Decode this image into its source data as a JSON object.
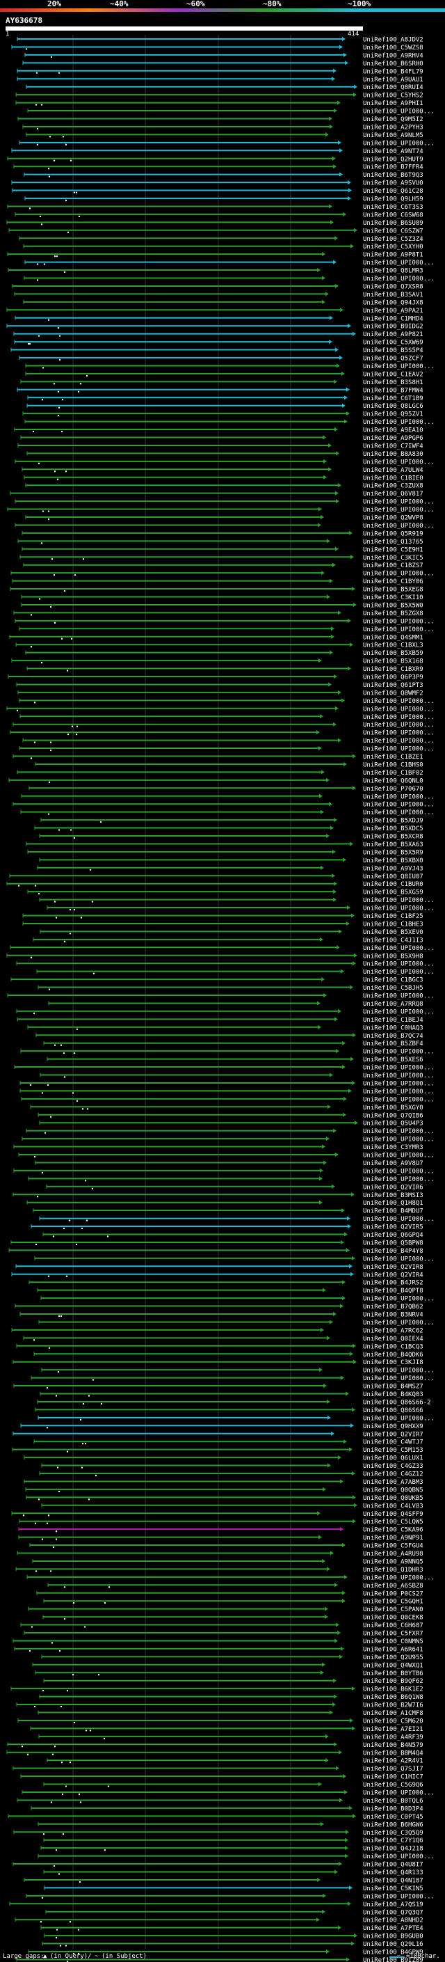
{
  "header": {
    "identity_scale": [
      {
        "label": "20%",
        "color": "#d62728"
      },
      {
        "label": "~40%",
        "color": "#ff7f0e"
      },
      {
        "label": "~60%",
        "color": "#9b30c8"
      },
      {
        "label": "~80%",
        "color": "#2ca02c"
      },
      {
        "label": "~100%",
        "color": "#1fbad6"
      }
    ],
    "query_id": "AY636678",
    "ruler_start": "1",
    "ruler_end": "414"
  },
  "hits": [
    {
      "name": "UniRef100_A8JDV2",
      "color": "cyan"
    },
    {
      "name": "UniRef100_C5WZS8",
      "color": "cyan"
    },
    {
      "name": "UniRef100_A9RHV4",
      "color": "cyan"
    },
    {
      "name": "UniRef100_B6SRH0",
      "color": "cyan"
    },
    {
      "name": "UniRef100_B4FL79",
      "color": "cyan"
    },
    {
      "name": "UniRef100_A9UAU1",
      "color": "cyan"
    },
    {
      "name": "UniRef100_Q8RUI4",
      "color": "cyan"
    },
    {
      "name": "UniRef100_C5YHS2",
      "color": "green"
    },
    {
      "name": "UniRef100_A9PHI1",
      "color": "green"
    },
    {
      "name": "UniRef100_UPI000...",
      "color": "green"
    },
    {
      "name": "UniRef100_Q9M5I2",
      "color": "green"
    },
    {
      "name": "UniRef100_A2PYH3",
      "color": "green"
    },
    {
      "name": "UniRef100_A9NLM5",
      "color": "green"
    },
    {
      "name": "UniRef100_UPI000...",
      "color": "cyan"
    },
    {
      "name": "UniRef100_A9NT74",
      "color": "cyan"
    },
    {
      "name": "UniRef100_Q2HUT9",
      "color": "green"
    },
    {
      "name": "UniRef100_B7FFR4",
      "color": "green"
    },
    {
      "name": "UniRef100_B6T9Q3",
      "color": "cyan"
    },
    {
      "name": "UniRef100_A9SVU0",
      "color": "cyan"
    },
    {
      "name": "UniRef100_Q61C28",
      "color": "cyan"
    },
    {
      "name": "UniRef100_Q9LH59",
      "color": "cyan"
    },
    {
      "name": "UniRef100_C6T3S3",
      "color": "green"
    },
    {
      "name": "UniRef100_C6SW68",
      "color": "green"
    },
    {
      "name": "UniRef100_B6SU89",
      "color": "green"
    },
    {
      "name": "UniRef100_C6SZW7",
      "color": "green"
    },
    {
      "name": "UniRef100_C5Z3Z4",
      "color": "green"
    },
    {
      "name": "UniRef100_C5XYH0",
      "color": "green"
    },
    {
      "name": "UniRef100_A9P8T1",
      "color": "green"
    },
    {
      "name": "UniRef100_UPI000...",
      "color": "cyan"
    },
    {
      "name": "UniRef100_Q8LMR3",
      "color": "green"
    },
    {
      "name": "UniRef100_UPI000...",
      "color": "green"
    },
    {
      "name": "UniRef100_Q7XSR8",
      "color": "green"
    },
    {
      "name": "UniRef100_B3SAV1",
      "color": "green"
    },
    {
      "name": "UniRef100_Q94JX8",
      "color": "green"
    },
    {
      "name": "UniRef100_A9PA21",
      "color": "green"
    },
    {
      "name": "UniRef100_C1MHD4",
      "color": "cyan"
    },
    {
      "name": "UniRef100_B9IDG2",
      "color": "cyan"
    },
    {
      "name": "UniRef100_A9P821",
      "color": "cyan"
    },
    {
      "name": "UniRef100_C5XW69",
      "color": "cyan"
    },
    {
      "name": "UniRef100_B5S5P4",
      "color": "cyan"
    },
    {
      "name": "UniRef100_Q5ZCF7",
      "color": "cyan"
    },
    {
      "name": "UniRef100_UPI000...",
      "color": "green"
    },
    {
      "name": "UniRef100_C1EAV2",
      "color": "green"
    },
    {
      "name": "UniRef100_B3S8H1",
      "color": "green"
    },
    {
      "name": "UniRef100_B7FMW4",
      "color": "cyan"
    },
    {
      "name": "UniRef100_C6T1B9",
      "color": "cyan"
    },
    {
      "name": "UniRef100_Q8LGC6",
      "color": "cyan"
    },
    {
      "name": "UniRef100_Q95ZV1",
      "color": "green"
    },
    {
      "name": "UniRef100_UPI000...",
      "color": "green"
    },
    {
      "name": "UniRef100_A9EA10",
      "color": "green"
    },
    {
      "name": "UniRef100_A9PGP6",
      "color": "green"
    },
    {
      "name": "UniRef100_C7IWF4",
      "color": "green"
    },
    {
      "name": "UniRef100_B8A830",
      "color": "green"
    },
    {
      "name": "UniRef100_UPI000...",
      "color": "green"
    },
    {
      "name": "UniRef100_A7ULW4",
      "color": "green"
    },
    {
      "name": "UniRef100_C1BIE0",
      "color": "green"
    },
    {
      "name": "UniRef100_C3ZUX8",
      "color": "green"
    },
    {
      "name": "UniRef100_Q6V817",
      "color": "green"
    },
    {
      "name": "UniRef100_UPI000...",
      "color": "green"
    },
    {
      "name": "UniRef100_UPI000...",
      "color": "green"
    },
    {
      "name": "UniRef100_Q2WVP8",
      "color": "green"
    },
    {
      "name": "UniRef100_UPI000...",
      "color": "green"
    },
    {
      "name": "UniRef100_Q5R919",
      "color": "green"
    },
    {
      "name": "UniRef100_Q13765",
      "color": "green"
    },
    {
      "name": "UniRef100_C5E9H1",
      "color": "green"
    },
    {
      "name": "UniRef100_C3KIC5",
      "color": "green"
    },
    {
      "name": "UniRef100_C1BZS7",
      "color": "green"
    },
    {
      "name": "UniRef100_UPI000...",
      "color": "green"
    },
    {
      "name": "UniRef100_C1BY06",
      "color": "green"
    },
    {
      "name": "UniRef100_B5XEG8",
      "color": "green"
    },
    {
      "name": "UniRef100_C3KI10",
      "color": "green"
    },
    {
      "name": "UniRef100_B5X5W0",
      "color": "green"
    },
    {
      "name": "UniRef100_B5ZGX8",
      "color": "green"
    },
    {
      "name": "UniRef100_UPI000...",
      "color": "green"
    },
    {
      "name": "UniRef100_UPI000...",
      "color": "green"
    },
    {
      "name": "UniRef100_Q4SMM1",
      "color": "green"
    },
    {
      "name": "UniRef100_C1BXL3",
      "color": "green"
    },
    {
      "name": "UniRef100_B5XB59",
      "color": "green"
    },
    {
      "name": "UniRef100_B5X168",
      "color": "green"
    },
    {
      "name": "UniRef100_C1BXR9",
      "color": "green"
    },
    {
      "name": "UniRef100_Q6P3P9",
      "color": "green"
    },
    {
      "name": "UniRef100_Q61PT3",
      "color": "green"
    },
    {
      "name": "UniRef100_Q8WMF2",
      "color": "green"
    },
    {
      "name": "UniRef100_UPI000...",
      "color": "green"
    },
    {
      "name": "UniRef100_UPI000...",
      "color": "green"
    },
    {
      "name": "UniRef100_UPI000...",
      "color": "green"
    },
    {
      "name": "UniRef100_UPI000...",
      "color": "green"
    },
    {
      "name": "UniRef100_UPI000...",
      "color": "green"
    },
    {
      "name": "UniRef100_UPI000...",
      "color": "green"
    },
    {
      "name": "UniRef100_UPI000...",
      "color": "green"
    },
    {
      "name": "UniRef100_C1BZE1",
      "color": "green"
    },
    {
      "name": "UniRef100_C1BHS0",
      "color": "green"
    },
    {
      "name": "UniRef100_C1BF02",
      "color": "green"
    },
    {
      "name": "UniRef100_Q6QNL0",
      "color": "green"
    },
    {
      "name": "UniRef100_P70670",
      "color": "green"
    },
    {
      "name": "UniRef100_UPI000...",
      "color": "green"
    },
    {
      "name": "UniRef100_UPI000...",
      "color": "green"
    },
    {
      "name": "UniRef100_UPI000...",
      "color": "green"
    },
    {
      "name": "UniRef100_B5XDJ9",
      "color": "green"
    },
    {
      "name": "UniRef100_B5XDC5",
      "color": "green"
    },
    {
      "name": "UniRef100_B5XCR8",
      "color": "green"
    },
    {
      "name": "UniRef100_B5XA63",
      "color": "green"
    },
    {
      "name": "UniRef100_B5X5R9",
      "color": "green"
    },
    {
      "name": "UniRef100_B5XBX0",
      "color": "green"
    },
    {
      "name": "UniRef100_A9VJ43",
      "color": "green"
    },
    {
      "name": "UniRef100_Q8IU07",
      "color": "green"
    },
    {
      "name": "UniRef100_C1BUR0",
      "color": "green"
    },
    {
      "name": "UniRef100_B5XG59",
      "color": "green"
    },
    {
      "name": "UniRef100_UPI000...",
      "color": "green"
    },
    {
      "name": "UniRef100_UPI000...",
      "color": "green"
    },
    {
      "name": "UniRef100_C1BF25",
      "color": "green"
    },
    {
      "name": "UniRef100_C1BHE3",
      "color": "green"
    },
    {
      "name": "UniRef100_B5XEV0",
      "color": "green"
    },
    {
      "name": "UniRef100_C4J1I3",
      "color": "green"
    },
    {
      "name": "UniRef100_UPI000...",
      "color": "green"
    },
    {
      "name": "UniRef100_B5X9H8",
      "color": "green"
    },
    {
      "name": "UniRef100_UPI000...",
      "color": "green"
    },
    {
      "name": "UniRef100_UPI000...",
      "color": "green"
    },
    {
      "name": "UniRef100_C1BGC3",
      "color": "green"
    },
    {
      "name": "UniRef100_C5BJH5",
      "color": "green"
    },
    {
      "name": "UniRef100_UPI000...",
      "color": "green"
    },
    {
      "name": "UniRef100_A7RRQ8",
      "color": "green"
    },
    {
      "name": "UniRef100_UPI000...",
      "color": "green"
    },
    {
      "name": "UniRef100_C1BEJ4",
      "color": "green"
    },
    {
      "name": "UniRef100_C0HAQ3",
      "color": "green"
    },
    {
      "name": "UniRef100_B7QC74",
      "color": "green"
    },
    {
      "name": "UniRef100_B5ZBF4",
      "color": "green"
    },
    {
      "name": "UniRef100_UPI000...",
      "color": "green"
    },
    {
      "name": "UniRef100_B5XES6",
      "color": "green"
    },
    {
      "name": "UniRef100_UPI000...",
      "color": "green"
    },
    {
      "name": "UniRef100_UPI000...",
      "color": "green"
    },
    {
      "name": "UniRef100_UPI000...",
      "color": "green"
    },
    {
      "name": "UniRef100_UPI000...",
      "color": "green"
    },
    {
      "name": "UniRef100_UPI000...",
      "color": "green"
    },
    {
      "name": "UniRef100_B5XGY0",
      "color": "green"
    },
    {
      "name": "UniRef100_Q7QIB6",
      "color": "green"
    },
    {
      "name": "UniRef100_Q5U4P3",
      "color": "green"
    },
    {
      "name": "UniRef100_UPI000...",
      "color": "green"
    },
    {
      "name": "UniRef100_UPI000...",
      "color": "green"
    },
    {
      "name": "UniRef100_C3YMR3",
      "color": "green"
    },
    {
      "name": "UniRef100_UPI000...",
      "color": "green"
    },
    {
      "name": "UniRef100_A9V8U7",
      "color": "green"
    },
    {
      "name": "UniRef100_UPI000...",
      "color": "green"
    },
    {
      "name": "UniRef100_UPI000...",
      "color": "green"
    },
    {
      "name": "UniRef100_Q2VIR6",
      "color": "green"
    },
    {
      "name": "UniRef100_B3MSI3",
      "color": "green"
    },
    {
      "name": "UniRef100_Q1H8Q1",
      "color": "green"
    },
    {
      "name": "UniRef100_B4MDU7",
      "color": "green"
    },
    {
      "name": "UniRef100_UPI000...",
      "color": "cyan"
    },
    {
      "name": "UniRef100_Q2VIR5",
      "color": "cyan"
    },
    {
      "name": "UniRef100_Q6GPQ4",
      "color": "green"
    },
    {
      "name": "UniRef100_Q5BPW8",
      "color": "green"
    },
    {
      "name": "UniRef100_B4P4Y8",
      "color": "green"
    },
    {
      "name": "UniRef100_UPI000...",
      "color": "green"
    },
    {
      "name": "UniRef100_Q2VIR8",
      "color": "cyan"
    },
    {
      "name": "UniRef100_Q2VIR4",
      "color": "cyan"
    },
    {
      "name": "UniRef100_B4JRS2",
      "color": "green"
    },
    {
      "name": "UniRef100_B4QPT8",
      "color": "green"
    },
    {
      "name": "UniRef100_UPI000...",
      "color": "green"
    },
    {
      "name": "UniRef100_B7QB62",
      "color": "green"
    },
    {
      "name": "UniRef100_B3NRV4",
      "color": "green"
    },
    {
      "name": "UniRef100_UPI000...",
      "color": "green"
    },
    {
      "name": "UniRef100_A7RC62",
      "color": "green"
    },
    {
      "name": "UniRef100_Q0IEX4",
      "color": "green"
    },
    {
      "name": "UniRef100_C1BCQ3",
      "color": "green"
    },
    {
      "name": "UniRef100_B4QDK6",
      "color": "green"
    },
    {
      "name": "UniRef100_C3KJI8",
      "color": "green"
    },
    {
      "name": "UniRef100_UPI000...",
      "color": "green"
    },
    {
      "name": "UniRef100_UPI000...",
      "color": "green"
    },
    {
      "name": "UniRef100_B4MSZ7",
      "color": "green"
    },
    {
      "name": "UniRef100_B4KQ03",
      "color": "green"
    },
    {
      "name": "UniRef100_Q86S66-2",
      "color": "green"
    },
    {
      "name": "UniRef100_Q86S66",
      "color": "green"
    },
    {
      "name": "UniRef100_UPI000...",
      "color": "cyan"
    },
    {
      "name": "UniRef100_Q9HXX9",
      "color": "cyan"
    },
    {
      "name": "UniRef100_Q2VIR7",
      "color": "cyan"
    },
    {
      "name": "UniRef100_C4WTJ7",
      "color": "green"
    },
    {
      "name": "UniRef100_C5M153",
      "color": "green"
    },
    {
      "name": "UniRef100_Q6LUX1",
      "color": "green"
    },
    {
      "name": "UniRef100_C4GZ33",
      "color": "green"
    },
    {
      "name": "UniRef100_C4GZ12",
      "color": "green"
    },
    {
      "name": "UniRef100_A7ABM3",
      "color": "green"
    },
    {
      "name": "UniRef100_Q0QBN5",
      "color": "green"
    },
    {
      "name": "UniRef100_Q0UKB5",
      "color": "green"
    },
    {
      "name": "UniRef100_C4LV83",
      "color": "green"
    },
    {
      "name": "UniRef100_Q4SFF9",
      "color": "green"
    },
    {
      "name": "UniRef100_C5LQW5",
      "color": "green"
    },
    {
      "name": "UniRef100_C5KA96",
      "color": "purple"
    },
    {
      "name": "UniRef100_A9NP91",
      "color": "green"
    },
    {
      "name": "UniRef100_C5FGU4",
      "color": "green"
    },
    {
      "name": "UniRef100_A4RU98",
      "color": "green"
    },
    {
      "name": "UniRef100_A9NNQ5",
      "color": "green"
    },
    {
      "name": "UniRef100_Q1DHR3",
      "color": "green"
    },
    {
      "name": "UniRef100_UPI000...",
      "color": "green"
    },
    {
      "name": "UniRef100_A6SBZ8",
      "color": "green"
    },
    {
      "name": "UniRef100_P0CS27",
      "color": "green"
    },
    {
      "name": "UniRef100_C5GQH1",
      "color": "green"
    },
    {
      "name": "UniRef100_C5PAN0",
      "color": "green"
    },
    {
      "name": "UniRef100_Q0CEK8",
      "color": "green"
    },
    {
      "name": "UniRef100_C6H607",
      "color": "green"
    },
    {
      "name": "UniRef100_C5FXR7",
      "color": "green"
    },
    {
      "name": "UniRef100_C0NMN5",
      "color": "green"
    },
    {
      "name": "UniRef100_A6R641",
      "color": "green"
    },
    {
      "name": "UniRef100_Q2U955",
      "color": "green"
    },
    {
      "name": "UniRef100_Q4WXQ1",
      "color": "green"
    },
    {
      "name": "UniRef100_B0YTB6",
      "color": "green"
    },
    {
      "name": "UniRef100_B9QF62",
      "color": "green"
    },
    {
      "name": "UniRef100_B6K1E2",
      "color": "green"
    },
    {
      "name": "UniRef100_B6Q1W8",
      "color": "green"
    },
    {
      "name": "UniRef100_B2W7I6",
      "color": "green"
    },
    {
      "name": "UniRef100_A1CMF8",
      "color": "green"
    },
    {
      "name": "UniRef100_C5M620",
      "color": "green"
    },
    {
      "name": "UniRef100_A7EI21",
      "color": "green"
    },
    {
      "name": "UniRef100_A4RF39",
      "color": "green"
    },
    {
      "name": "UniRef100_B4N579",
      "color": "green"
    },
    {
      "name": "UniRef100_B8M4Q4",
      "color": "green"
    },
    {
      "name": "UniRef100_A2R4V1",
      "color": "green"
    },
    {
      "name": "UniRef100_Q7SJI7",
      "color": "green"
    },
    {
      "name": "UniRef100_C1HIC7",
      "color": "green"
    },
    {
      "name": "UniRef100_C5G9Q6",
      "color": "green"
    },
    {
      "name": "UniRef100_UPI000...",
      "color": "green"
    },
    {
      "name": "UniRef100_B0TQL6",
      "color": "green"
    },
    {
      "name": "UniRef100_B0D3P4",
      "color": "green"
    },
    {
      "name": "UniRef100_C0PT45",
      "color": "green"
    },
    {
      "name": "UniRef100_B6HGW6",
      "color": "green"
    },
    {
      "name": "UniRef100_C3Q5Q9",
      "color": "green"
    },
    {
      "name": "UniRef100_C7Y1Q6",
      "color": "green"
    },
    {
      "name": "UniRef100_Q4J218",
      "color": "green"
    },
    {
      "name": "UniRef100_UPI000...",
      "color": "green"
    },
    {
      "name": "UniRef100_Q4U8I7",
      "color": "green"
    },
    {
      "name": "UniRef100_Q4R133",
      "color": "green"
    },
    {
      "name": "UniRef100_Q4N187",
      "color": "green"
    },
    {
      "name": "UniRef100_C5KIN5",
      "color": "cyan"
    },
    {
      "name": "UniRef100_UPI000...",
      "color": "green"
    },
    {
      "name": "UniRef100_A7QS19",
      "color": "green"
    },
    {
      "name": "UniRef100_Q7Q3Q7",
      "color": "green"
    },
    {
      "name": "UniRef100_A8NHD2",
      "color": "green"
    },
    {
      "name": "UniRef100_A7PTE4",
      "color": "green"
    },
    {
      "name": "UniRef100_B9GUB0",
      "color": "green"
    },
    {
      "name": "UniRef100_Q29L16",
      "color": "green"
    },
    {
      "name": "UniRef100_B4GPW9",
      "color": "green"
    },
    {
      "name": "UniRef100_B9IZ89",
      "color": "green"
    },
    {
      "name": "UniRef100_A7QUU5",
      "color": "green"
    },
    {
      "name": "UniRef100_C5XPL1",
      "color": "green"
    },
    {
      "name": "UniRef100_Q4P5X1",
      "color": "green"
    }
  ],
  "footer": {
    "large_gaps_label": "Large gaps:",
    "in_query_label": "(in Query)/",
    "in_subject_label": "(in Subject)",
    "scale_label": "=100char."
  }
}
